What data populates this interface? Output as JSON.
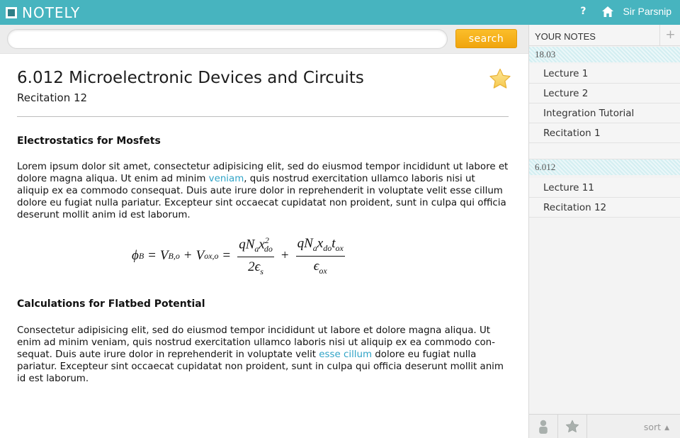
{
  "app": {
    "name": "NOTELY",
    "help_label": "?",
    "user_name": "Sir Parsnip",
    "brand_color": "#47b4bf",
    "accent_color": "#f3ab18",
    "link_color": "#2fa3c6"
  },
  "search": {
    "value": "",
    "placeholder": "",
    "button_label": "search"
  },
  "note": {
    "title": "6.012 Microelectronic Devices and Circuits",
    "subtitle": "Recitation 12",
    "starred": true,
    "sections": [
      {
        "heading": "Electrostatics for Mosfets",
        "text_1": "Lorem ipsum dolor sit amet, consectetur adipisicing elit, sed do eiusmod tempor incididunt ut labore et dolore magna aliqua. Ut enim ad minim ",
        "link": "veniam",
        "text_2": ", quis nostrud exercitation ullamco laboris nisi ut aliquip ex ea commodo consequat. Duis aute irure dolor in reprehenderit in voluptate velit esse cillum dolore eu fugiat nulla pariatur. Excepteur sint occaecat cupidatat non proident, sunt in culpa qui officia deserunt mollit anim id est laborum."
      },
      {
        "heading": "Calculations for Flatbed Potential",
        "text_1": "Consectetur adipisicing elit, sed do eiusmod tempor incididunt ut labore et dolore magna aliqua. Ut enim ad minim veniam, quis nostrud exercitation ullamco laboris nisi ut aliquip ex ea commodo con-sequat. Duis aute irure dolor in reprehenderit in voluptate velit ",
        "link": "esse cillum",
        "text_2": " dolore eu fugiat nulla pariatur. Excepteur sint occaecat cupidatat non proident, sunt in culpa qui officia deserunt mollit anim id est laborum."
      }
    ],
    "formula": {
      "lhs": "ϕ",
      "lhs_sub": "B",
      "eq": "=",
      "t1": "V",
      "t1_sub": "B,o",
      "plus": "+",
      "t2": "V",
      "t2_sub": "ox,o",
      "f1_num_a": "qN",
      "f1_num_a_sub": "a",
      "f1_num_b": "x",
      "f1_num_b_sup": "2",
      "f1_num_b_sub": "do",
      "f1_den": "2ϵ",
      "f1_den_sub": "s",
      "f2_num_a": "qN",
      "f2_num_a_sub": "a",
      "f2_num_b": "x",
      "f2_num_b_sub": "do",
      "f2_num_c": "t",
      "f2_num_c_sub": "ox",
      "f2_den": "ϵ",
      "f2_den_sub": "ox"
    }
  },
  "sidebar": {
    "title": "YOUR NOTES",
    "add_label": "+",
    "groups": [
      {
        "label": "18.03",
        "items": [
          "Lecture 1",
          "Lecture 2",
          "Integration Tutorial",
          "Recitation 1"
        ]
      },
      {
        "label": "6.012",
        "items": [
          "Lecture 11",
          "Recitation 12"
        ]
      }
    ],
    "sort_label": "sort"
  }
}
